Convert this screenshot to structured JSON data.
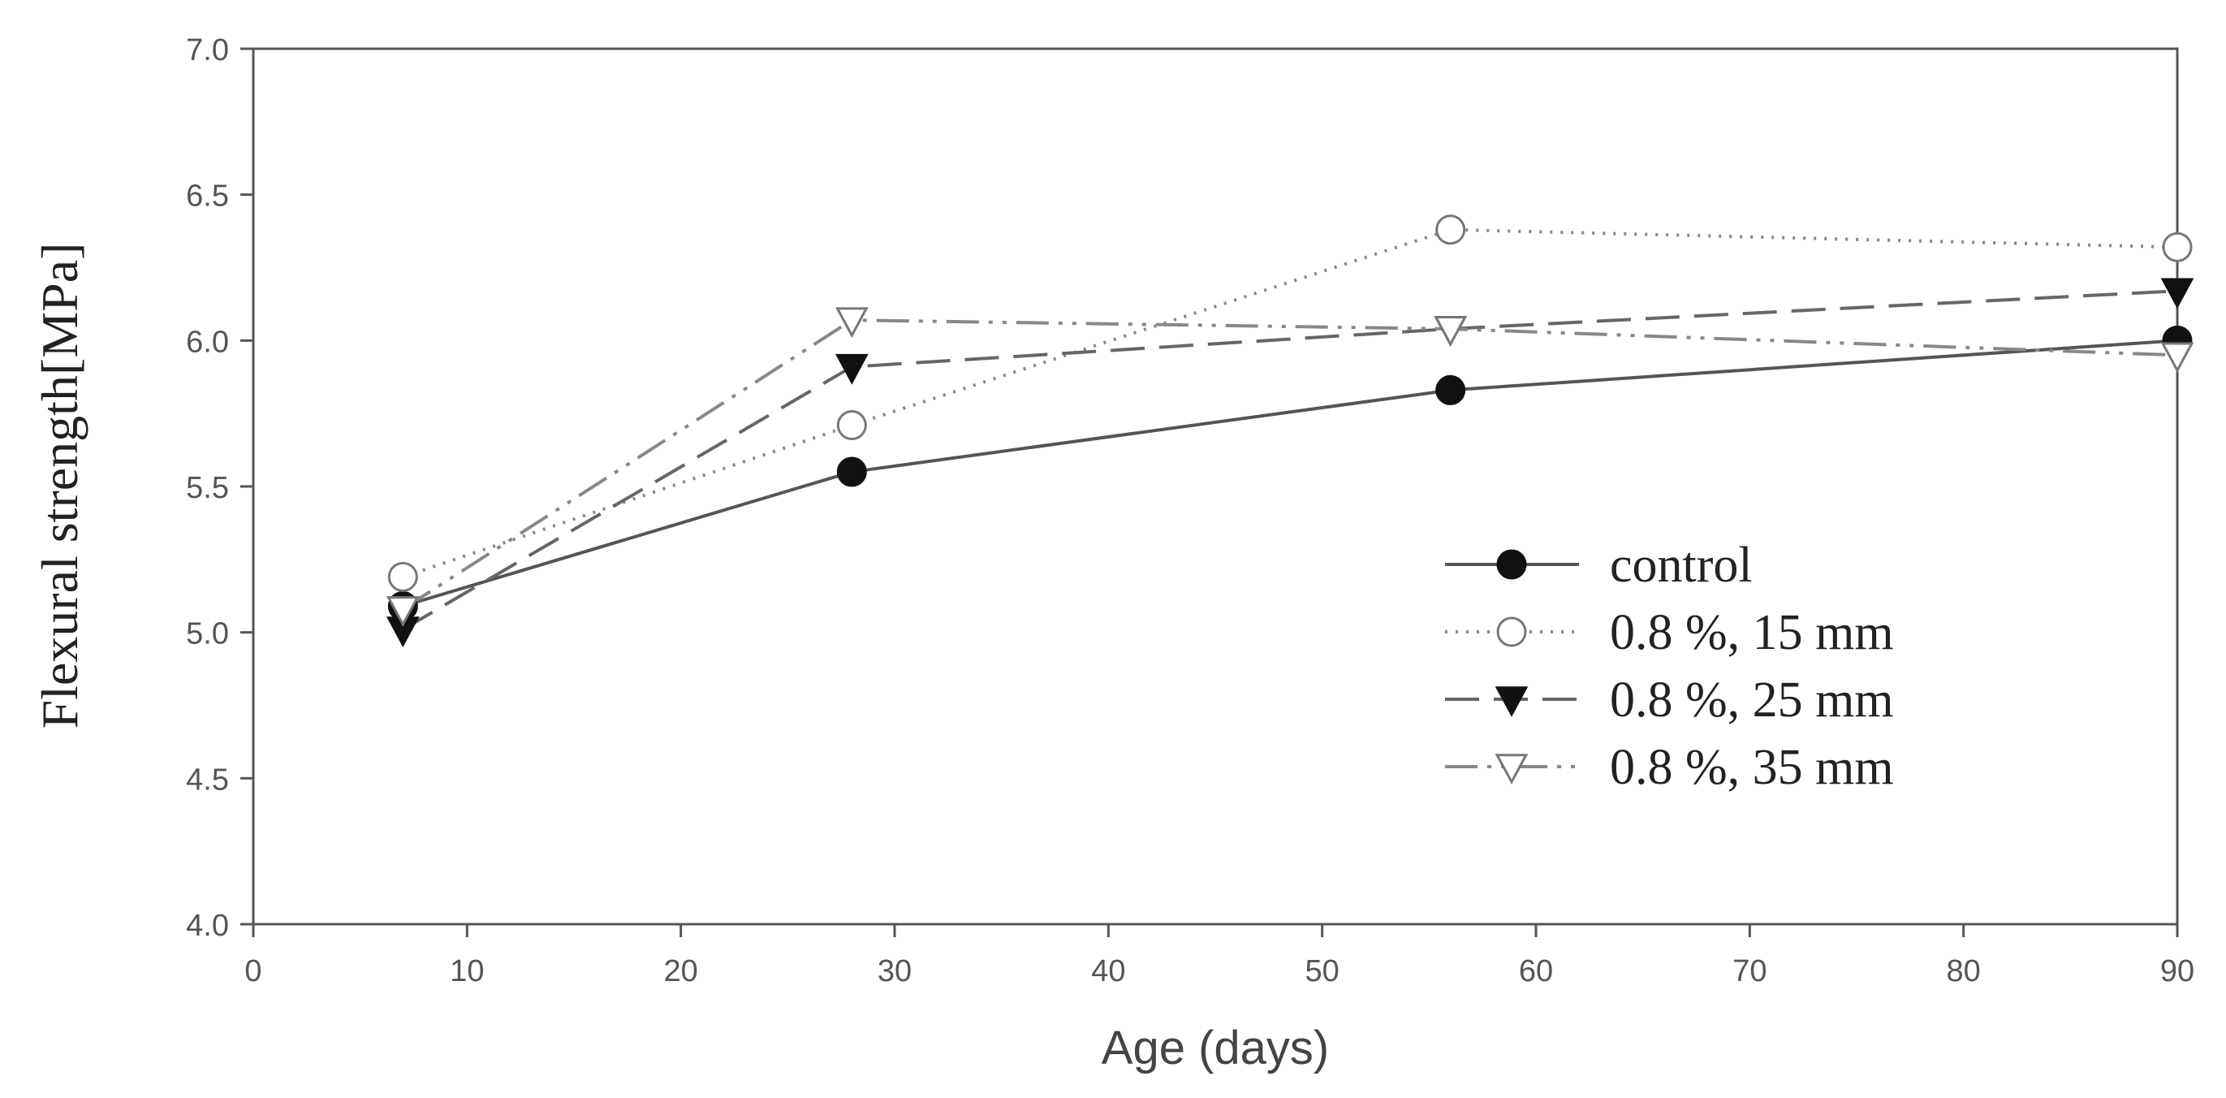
{
  "chart_data": {
    "type": "line",
    "title": "",
    "xlabel": "Age (days)",
    "ylabel": "Flexural strength[MPa]",
    "xlim": [
      0,
      90
    ],
    "ylim": [
      4.0,
      7.0
    ],
    "xticks": [
      0,
      10,
      20,
      30,
      40,
      50,
      60,
      70,
      80,
      90
    ],
    "xtick_labels": [
      "0",
      "10",
      "20",
      "30",
      "40",
      "50",
      "60",
      "70",
      "80",
      "90"
    ],
    "yticks": [
      4.0,
      4.5,
      5.0,
      5.5,
      6.0,
      6.5,
      7.0
    ],
    "ytick_labels": [
      "4.0",
      "4.5",
      "5.0",
      "5.5",
      "6.0",
      "6.5",
      "7.0"
    ],
    "grid": false,
    "legend_position": "center-right",
    "x": [
      7,
      28,
      56,
      90
    ],
    "series": [
      {
        "name": "control",
        "values": [
          5.09,
          5.55,
          5.83,
          6.0
        ],
        "marker": "filled-circle",
        "line": "solid",
        "color": "#555555"
      },
      {
        "name": "0.8 %, 15 mm",
        "values": [
          5.19,
          5.71,
          6.38,
          6.32
        ],
        "marker": "open-circle",
        "line": "dotted",
        "color": "#888888"
      },
      {
        "name": "0.8 %, 25 mm",
        "values": [
          5.01,
          5.91,
          6.04,
          6.17
        ],
        "marker": "filled-triangle-down",
        "line": "dashed",
        "color": "#666666"
      },
      {
        "name": "0.8 %, 35 mm",
        "values": [
          5.08,
          6.07,
          6.04,
          5.95
        ],
        "marker": "open-triangle-down",
        "line": "dash-dot-dot",
        "color": "#888888"
      }
    ]
  }
}
